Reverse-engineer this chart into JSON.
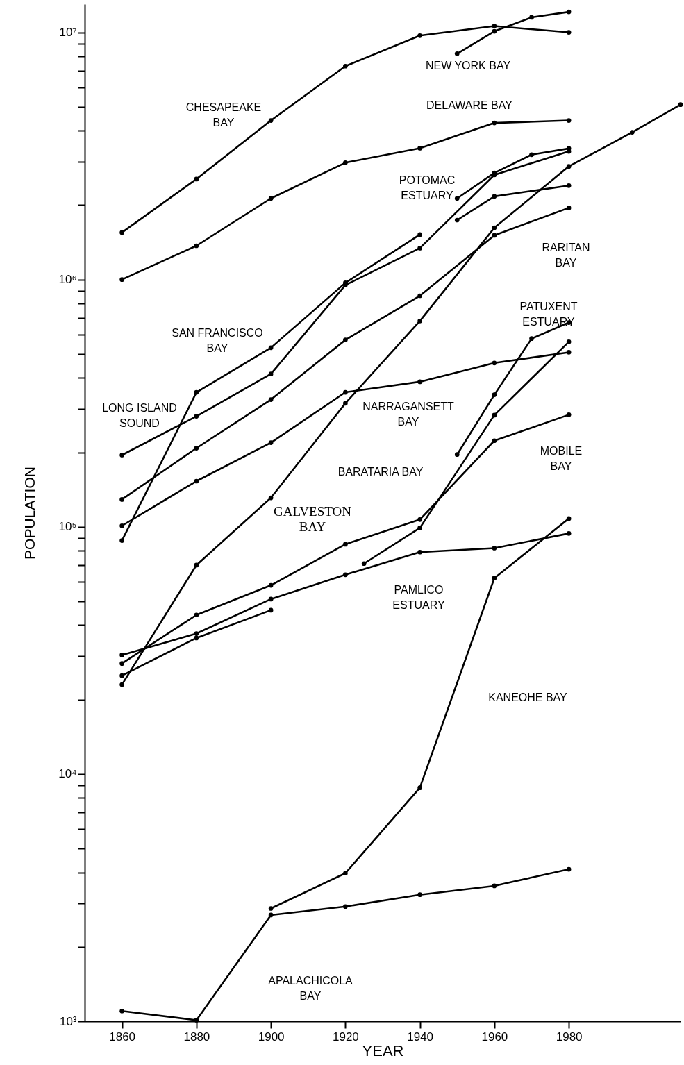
{
  "chart_data": {
    "type": "line",
    "xlabel": "YEAR",
    "ylabel": "POPULATION",
    "log": "y",
    "marker": "circle",
    "line_style": "solid",
    "grid": false,
    "xlim": [
      1850,
      2010
    ],
    "xticks": [
      1860,
      1880,
      1900,
      1920,
      1940,
      1960,
      1980
    ],
    "ylim": [
      1000,
      13000000
    ],
    "yticks": [
      {
        "value": 1000,
        "label": "10³"
      },
      {
        "value": 2000,
        "label": null
      },
      {
        "value": 3000,
        "label": null
      },
      {
        "value": 4000,
        "label": null
      },
      {
        "value": 5000,
        "label": null
      },
      {
        "value": 6000,
        "label": null
      },
      {
        "value": 7000,
        "label": null
      },
      {
        "value": 8000,
        "label": null
      },
      {
        "value": 9000,
        "label": null
      },
      {
        "value": 10000,
        "label": "10⁴"
      },
      {
        "value": 20000,
        "label": null
      },
      {
        "value": 30000,
        "label": null
      },
      {
        "value": 40000,
        "label": null
      },
      {
        "value": 50000,
        "label": null
      },
      {
        "value": 60000,
        "label": null
      },
      {
        "value": 70000,
        "label": null
      },
      {
        "value": 80000,
        "label": null
      },
      {
        "value": 90000,
        "label": null
      },
      {
        "value": 100000,
        "label": "10⁵"
      },
      {
        "value": 200000,
        "label": null
      },
      {
        "value": 300000,
        "label": null
      },
      {
        "value": 400000,
        "label": null
      },
      {
        "value": 500000,
        "label": null
      },
      {
        "value": 600000,
        "label": null
      },
      {
        "value": 700000,
        "label": null
      },
      {
        "value": 800000,
        "label": null
      },
      {
        "value": 900000,
        "label": null
      },
      {
        "value": 1000000,
        "label": "10⁶"
      },
      {
        "value": 2000000,
        "label": null
      },
      {
        "value": 3000000,
        "label": null
      },
      {
        "value": 4000000,
        "label": null
      },
      {
        "value": 5000000,
        "label": null
      },
      {
        "value": 6000000,
        "label": null
      },
      {
        "value": 7000000,
        "label": null
      },
      {
        "value": 8000000,
        "label": null
      },
      {
        "value": 9000000,
        "label": null
      },
      {
        "value": 10000000,
        "label": "10⁷"
      }
    ],
    "series": [
      {
        "name": "CHESAPEAKE BAY",
        "color": "#000000",
        "x": [
          1860,
          1880,
          1900,
          1920,
          1940,
          1960,
          1980
        ],
        "values": [
          1550000,
          2550000,
          4400000,
          7300000,
          9700000,
          10600000,
          10000000
        ]
      },
      {
        "name": "NEW YORK BAY",
        "color": "#000000",
        "x": [
          1950,
          1960,
          1970,
          1980
        ],
        "values": [
          8200000,
          10100000,
          11500000,
          12100000
        ]
      },
      {
        "name": "DELAWARE BAY",
        "color": "#000000",
        "x": [
          1860,
          1880,
          1900,
          1920,
          1940,
          1960,
          1980
        ],
        "values": [
          1000000,
          1370000,
          2130000,
          2970000,
          3400000,
          4300000,
          4400000
        ]
      },
      {
        "name": "POTOMAC ESTUARY",
        "color": "#000000",
        "x": [
          1950,
          1960,
          1970,
          1980
        ],
        "values": [
          2130000,
          2700000,
          3200000,
          3390000
        ]
      },
      {
        "name": "RARITAN BAY",
        "color": "#000000",
        "x": [
          1860,
          1880,
          1900,
          1920,
          1940,
          1960,
          1980
        ],
        "values": [
          129000,
          208000,
          327000,
          570000,
          860000,
          1510000,
          1950000
        ]
      },
      {
        "name": "SAN FRANCISCO BAY",
        "color": "#000000",
        "x": [
          1860,
          1880,
          1900,
          1920,
          1940
        ],
        "values": [
          88000,
          350000,
          530000,
          970000,
          1520000
        ]
      },
      {
        "name": "LONG ISLAND SOUND",
        "color": "#000000",
        "x": [
          1860,
          1880,
          1900,
          1920,
          1940,
          1960,
          1980
        ],
        "values": [
          195000,
          280000,
          415000,
          950000,
          1340000,
          2650000,
          3300000
        ]
      },
      {
        "name": "PATUXENT ESTUARY",
        "color": "#000000",
        "x": [
          1950,
          1960,
          1970,
          1980
        ],
        "values": [
          196000,
          342000,
          577000,
          670000
        ]
      },
      {
        "name": "NARRAGANSETT BAY",
        "color": "#000000",
        "x": [
          1860,
          1880,
          1900,
          1920,
          1940,
          1960,
          1980
        ],
        "values": [
          101000,
          153000,
          219000,
          350000,
          386000,
          460000,
          508000
        ]
      },
      {
        "name": "MOBILE BAY",
        "color": "#000000",
        "x": [
          1860,
          1880,
          1900,
          1920,
          1940,
          1960,
          1980
        ],
        "values": [
          28000,
          44000,
          58000,
          85000,
          107000,
          223000,
          284000
        ]
      },
      {
        "name": "BARATARIA BAY",
        "color": "#000000",
        "x": [
          1925,
          1940,
          1960,
          1980
        ],
        "values": [
          71000,
          99000,
          283000,
          560000
        ]
      },
      {
        "name": "GALVESTON BAY",
        "color": "#000000",
        "x": [
          1860,
          1880,
          1900,
          1920,
          1940,
          1960,
          1980,
          1997,
          2010
        ],
        "values": [
          23000,
          70000,
          131000,
          316000,
          680000,
          1620000,
          2870000,
          3940000,
          5100000
        ]
      },
      {
        "name": "PAMLICO ESTUARY",
        "color": "#000000",
        "x": [
          1860,
          1880,
          1900,
          1920,
          1940,
          1960,
          1980
        ],
        "values": [
          30300,
          37000,
          51000,
          64000,
          79000,
          82000,
          94000
        ]
      },
      {
        "name": "KANEOHE BAY",
        "color": "#000000",
        "x": [
          1900,
          1920,
          1940,
          1960,
          1980
        ],
        "values": [
          2860,
          3970,
          8800,
          62000,
          108000
        ]
      },
      {
        "name": "APALACHICOLA BAY",
        "color": "#000000",
        "x": [
          1860,
          1880,
          1900,
          1920,
          1940,
          1960,
          1980
        ],
        "values": [
          1100,
          1010,
          2690,
          2910,
          3250,
          3530,
          4120
        ]
      },
      {
        "color": "#000000",
        "x": [
          1950,
          1960,
          1980
        ],
        "values": [
          1740000,
          2170000,
          2400000
        ]
      },
      {
        "color": "#000000",
        "x": [
          1860,
          1880,
          1900
        ],
        "values": [
          25000,
          35500,
          46000
        ]
      }
    ]
  }
}
